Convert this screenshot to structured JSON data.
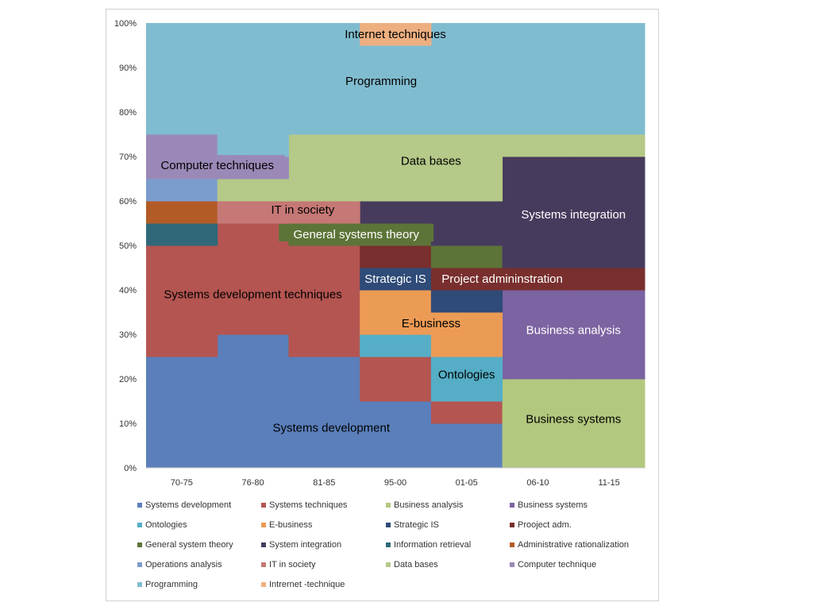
{
  "chart_data": {
    "type": "area",
    "subtype": "stepped-stacked-percent",
    "categories": [
      "70-75",
      "76-80",
      "81-85",
      "95-00",
      "01-05",
      "06-10",
      "11-15"
    ],
    "y_ticks": [
      "0%",
      "10%",
      "20%",
      "30%",
      "40%",
      "50%",
      "60%",
      "70%",
      "80%",
      "90%",
      "100%"
    ],
    "ylim": [
      0,
      100
    ],
    "colors": {
      "systems_development": "#5a7fbb",
      "systems_techniques": "#b45551",
      "business_analysis": "#b3c87f",
      "business_systems": "#7c63a1",
      "ontologies": "#55aec6",
      "e_business": "#ec9b55",
      "strategic_is": "#2f4b78",
      "project_adm": "#782f2d",
      "general_system_theory": "#5d7438",
      "system_integration": "#473b5d",
      "information_retrieval": "#30687a",
      "administrative_rationalization": "#b35b26",
      "operations_analysis": "#7c9cce",
      "it_in_society": "#c57875",
      "data_bases": "#b5c988",
      "computer_technique": "#9a89b7",
      "programming": "#80bcd0",
      "internet_technique": "#eeaf80"
    },
    "series": [
      {
        "name": "Systems development",
        "key": "systems_development",
        "values": [
          25,
          30,
          25,
          15,
          10,
          0,
          0
        ]
      },
      {
        "name": "Systems techniques",
        "key": "systems_techniques",
        "values": [
          25,
          25,
          25,
          10,
          5,
          0,
          0
        ]
      },
      {
        "name": "Business analysis",
        "key": "business_analysis",
        "values": [
          0,
          0,
          0,
          0,
          0,
          20,
          20
        ]
      },
      {
        "name": "Business systems",
        "key": "business_systems",
        "values": [
          0,
          0,
          0,
          0,
          0,
          20,
          20
        ]
      },
      {
        "name": "Ontologies",
        "key": "ontologies",
        "values": [
          0,
          0,
          0,
          5,
          10,
          0,
          0
        ]
      },
      {
        "name": "E-business",
        "key": "e_business",
        "values": [
          0,
          0,
          0,
          10,
          10,
          0,
          0
        ]
      },
      {
        "name": "Strategic IS",
        "key": "strategic_is",
        "values": [
          0,
          0,
          0,
          5,
          5,
          0,
          0
        ]
      },
      {
        "name": "Prooject adm.",
        "key": "project_adm",
        "values": [
          0,
          0,
          0,
          5,
          5,
          5,
          5
        ]
      },
      {
        "name": "General system theory",
        "key": "general_system_theory",
        "values": [
          0,
          0,
          5,
          5,
          5,
          0,
          0
        ]
      },
      {
        "name": "System integration",
        "key": "system_integration",
        "values": [
          0,
          0,
          0,
          5,
          10,
          25,
          25
        ]
      },
      {
        "name": "Information retrieval",
        "key": "information_retrieval",
        "values": [
          5,
          0,
          0,
          0,
          0,
          0,
          0
        ]
      },
      {
        "name": "Administrative rationalization",
        "key": "administrative_rationalization",
        "values": [
          5,
          0,
          0,
          0,
          0,
          0,
          0
        ]
      },
      {
        "name": "Operations analysis",
        "key": "operations_analysis",
        "values": [
          5,
          0,
          0,
          0,
          0,
          0,
          0
        ]
      },
      {
        "name": "IT in society",
        "key": "it_in_society",
        "values": [
          0,
          5,
          5,
          0,
          0,
          0,
          0
        ]
      },
      {
        "name": "Data bases",
        "key": "data_bases",
        "values": [
          0,
          5,
          15,
          15,
          15,
          5,
          5
        ]
      },
      {
        "name": "Computer technique",
        "key": "computer_technique",
        "values": [
          10,
          5,
          0,
          0,
          0,
          0,
          0
        ]
      },
      {
        "name": "Programming",
        "key": "programming",
        "values": [
          25,
          30,
          25,
          20,
          25,
          25,
          25
        ]
      },
      {
        "name": "Intrernet -technique",
        "key": "internet_technique",
        "values": [
          0,
          0,
          0,
          5,
          0,
          0,
          0
        ]
      }
    ],
    "area_labels": [
      {
        "text": "Systems development",
        "series": "systems_development",
        "anchor_x": 2.6,
        "anchor_y": 9,
        "color": "#000000"
      },
      {
        "text": "Systems development techniques",
        "series": "systems_techniques",
        "anchor_x": 1.5,
        "anchor_y": 39,
        "color": "#000000"
      },
      {
        "text": "IT in society",
        "series": "it_in_society",
        "anchor_x": 2.2,
        "anchor_y": 58,
        "color": "#000000"
      },
      {
        "text": "Computer techniques",
        "series": "computer_technique",
        "anchor_x": 1.0,
        "anchor_y": 68,
        "color": "#000000",
        "bg": "computer_technique"
      },
      {
        "text": "Programming",
        "series": "programming",
        "anchor_x": 3.3,
        "anchor_y": 87,
        "color": "#000000"
      },
      {
        "text": "Internet techniques",
        "series": "internet_technique",
        "anchor_x": 3.5,
        "anchor_y": 97.5,
        "color": "#000000"
      },
      {
        "text": "Data bases",
        "series": "data_bases",
        "anchor_x": 4.0,
        "anchor_y": 69,
        "color": "#000000"
      },
      {
        "text": "General systems theory",
        "series": "general_system_theory",
        "anchor_x": 2.95,
        "anchor_y": 52.5,
        "color": "#ffffff",
        "bg": "general_system_theory"
      },
      {
        "text": "Strategic IS",
        "series": "strategic_is",
        "anchor_x": 3.5,
        "anchor_y": 42.5,
        "color": "#ffffff"
      },
      {
        "text": "Project admininstration",
        "series": "project_adm",
        "anchor_x": 5.0,
        "anchor_y": 42.5,
        "color": "#ffffff"
      },
      {
        "text": "E-business",
        "series": "e_business",
        "anchor_x": 4.0,
        "anchor_y": 32.5,
        "color": "#000000"
      },
      {
        "text": "Ontologies",
        "series": "ontologies",
        "anchor_x": 4.5,
        "anchor_y": 21,
        "color": "#000000"
      },
      {
        "text": "Systems integration",
        "series": "system_integration",
        "anchor_x": 6.0,
        "anchor_y": 57,
        "color": "#ffffff"
      },
      {
        "text": "Business analysis",
        "series": "business_analysis",
        "anchor_x": 6.0,
        "anchor_y": 31,
        "color": "#ffffff"
      },
      {
        "text": "Business systems",
        "series": "business_systems",
        "anchor_x": 6.0,
        "anchor_y": 11,
        "color": "#000000"
      }
    ],
    "legend": [
      "Systems development",
      "Systems techniques",
      "Business analysis",
      "Business systems",
      "Ontologies",
      "E-business",
      "Strategic IS",
      "Prooject adm.",
      "General system theory",
      "System integration",
      "Information retrieval",
      "Administrative rationalization",
      "Operations analysis",
      "IT in society",
      "Data bases",
      "Computer technique",
      "Programming",
      "Intrernet -technique"
    ],
    "legend_keys": [
      "systems_development",
      "systems_techniques",
      "business_analysis",
      "business_systems",
      "ontologies",
      "e_business",
      "strategic_is",
      "project_adm",
      "general_system_theory",
      "system_integration",
      "information_retrieval",
      "administrative_rationalization",
      "operations_analysis",
      "it_in_society",
      "data_bases",
      "computer_technique",
      "programming",
      "internet_technique"
    ]
  }
}
